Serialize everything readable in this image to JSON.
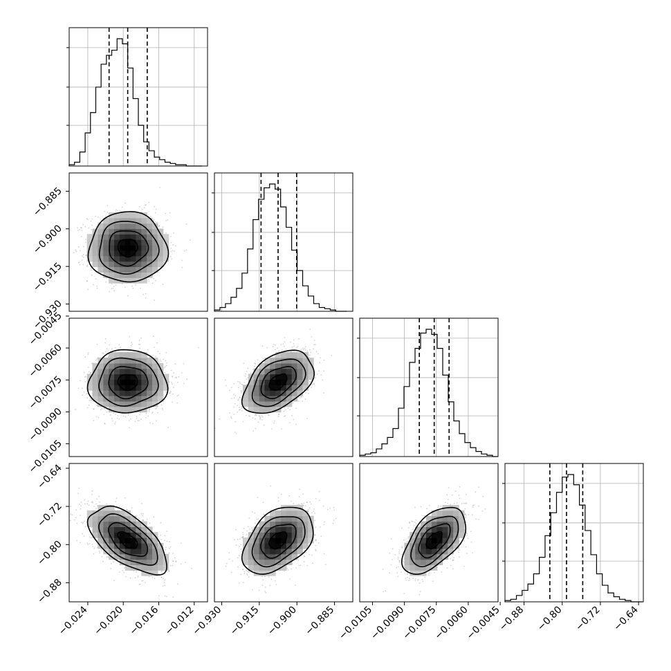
{
  "chart_data": {
    "type": "corner",
    "parameters": [
      {
        "ticks": [
          -0.024,
          -0.02,
          -0.016,
          -0.012
        ],
        "tick_labels": [
          "−0.024",
          "−0.020",
          "−0.016",
          "−0.012"
        ],
        "range": [
          -0.0261,
          -0.0105
        ],
        "quantiles": [
          -0.0216,
          -0.0195,
          -0.0173
        ],
        "histogram": {
          "edges": [
            -0.0261,
            -0.0255,
            -0.0249,
            -0.0243,
            -0.0237,
            -0.0231,
            -0.0225,
            -0.0219,
            -0.0213,
            -0.0207,
            -0.0201,
            -0.0195,
            -0.0189,
            -0.0183,
            -0.0177,
            -0.0171,
            -0.0165,
            -0.0159,
            -0.0153,
            -0.0147,
            -0.0141,
            -0.0135,
            -0.0129,
            -0.0123,
            -0.0117,
            -0.0111
          ],
          "counts": [
            0.01,
            0.03,
            0.11,
            0.26,
            0.42,
            0.62,
            0.8,
            0.87,
            0.91,
            1.0,
            0.96,
            0.77,
            0.53,
            0.32,
            0.19,
            0.12,
            0.07,
            0.05,
            0.03,
            0.02,
            0.01,
            0.01,
            0.0,
            0.0,
            0.0
          ]
        }
      },
      {
        "ticks": [
          -0.93,
          -0.915,
          -0.9,
          -0.885
        ],
        "tick_labels": [
          "−0.930",
          "−0.915",
          "−0.900",
          "−0.885"
        ],
        "range": [
          -0.9329,
          -0.8777
        ],
        "quantiles": [
          -0.9143,
          -0.9075,
          -0.9001
        ],
        "histogram": {
          "edges": [
            -0.9329,
            -0.9307,
            -0.9285,
            -0.9263,
            -0.9241,
            -0.9219,
            -0.9197,
            -0.9175,
            -0.9153,
            -0.9131,
            -0.9109,
            -0.9087,
            -0.9065,
            -0.9043,
            -0.9021,
            -0.8999,
            -0.8977,
            -0.8955,
            -0.8933,
            -0.8911,
            -0.8889,
            -0.8867,
            -0.8845,
            -0.8823,
            -0.8801
          ],
          "counts": [
            0.01,
            0.03,
            0.06,
            0.11,
            0.18,
            0.3,
            0.49,
            0.72,
            0.88,
            0.97,
            1.0,
            0.96,
            0.82,
            0.66,
            0.48,
            0.32,
            0.2,
            0.12,
            0.06,
            0.03,
            0.02,
            0.01,
            0.0,
            0.0
          ]
        }
      },
      {
        "ticks": [
          -0.0105,
          -0.009,
          -0.0075,
          -0.006,
          -0.0045
        ],
        "tick_labels": [
          "−0.0105",
          "−0.0090",
          "−0.0075",
          "−0.0060",
          "−0.0045"
        ],
        "range": [
          -0.0111,
          -0.0046
        ],
        "quantiles": [
          -0.0083,
          -0.0076,
          -0.0069
        ],
        "histogram": {
          "edges": [
            -0.0111,
            -0.01084,
            -0.01058,
            -0.01032,
            -0.01006,
            -0.0098,
            -0.00954,
            -0.00928,
            -0.00902,
            -0.00876,
            -0.0085,
            -0.00824,
            -0.00798,
            -0.00772,
            -0.00746,
            -0.0072,
            -0.00694,
            -0.00668,
            -0.00642,
            -0.00616,
            -0.0059,
            -0.00564,
            -0.00538,
            -0.00512,
            -0.00486,
            -0.0046
          ],
          "counts": [
            0.01,
            0.02,
            0.03,
            0.06,
            0.1,
            0.15,
            0.22,
            0.38,
            0.55,
            0.74,
            0.85,
            0.97,
            1.0,
            0.96,
            0.85,
            0.64,
            0.43,
            0.28,
            0.18,
            0.11,
            0.07,
            0.04,
            0.02,
            0.01,
            0.0
          ]
        }
      },
      {
        "ticks": [
          -0.88,
          -0.8,
          -0.72,
          -0.64
        ],
        "tick_labels": [
          "−0.88",
          "−0.80",
          "−0.72",
          "−0.64"
        ],
        "range": [
          -0.92,
          -0.63
        ],
        "quantiles": [
          -0.826,
          -0.791,
          -0.757
        ],
        "histogram": {
          "edges": [
            -0.92,
            -0.908,
            -0.896,
            -0.884,
            -0.872,
            -0.86,
            -0.848,
            -0.836,
            -0.824,
            -0.812,
            -0.8,
            -0.788,
            -0.776,
            -0.764,
            -0.752,
            -0.74,
            -0.728,
            -0.716,
            -0.704,
            -0.692,
            -0.68,
            -0.668,
            -0.656,
            -0.644,
            -0.632
          ],
          "counts": [
            0.01,
            0.02,
            0.05,
            0.09,
            0.14,
            0.22,
            0.35,
            0.52,
            0.7,
            0.86,
            0.98,
            1.0,
            0.92,
            0.76,
            0.56,
            0.37,
            0.22,
            0.13,
            0.07,
            0.04,
            0.02,
            0.01,
            0.0,
            0.0
          ]
        }
      }
    ],
    "pairs": [
      {
        "x": 0,
        "y": 1,
        "mean": [
          -0.0195,
          -0.9075
        ],
        "sigma": [
          0.0022,
          0.007
        ],
        "rho": 0.0,
        "scatter_points": 1300
      },
      {
        "x": 0,
        "y": 2,
        "mean": [
          -0.0195,
          -0.0076
        ],
        "sigma": [
          0.0022,
          0.00074
        ],
        "rho": 0.0,
        "scatter_points": 1300
      },
      {
        "x": 1,
        "y": 2,
        "mean": [
          -0.9075,
          -0.0076
        ],
        "sigma": [
          0.007,
          0.00074
        ],
        "rho": 0.45,
        "scatter_points": 1300
      },
      {
        "x": 0,
        "y": 3,
        "mean": [
          -0.0195,
          -0.791
        ],
        "sigma": [
          0.0022,
          0.035
        ],
        "rho": -0.6,
        "scatter_points": 1300
      },
      {
        "x": 1,
        "y": 3,
        "mean": [
          -0.9075,
          -0.791
        ],
        "sigma": [
          0.007,
          0.035
        ],
        "rho": 0.42,
        "scatter_points": 1300
      },
      {
        "x": 2,
        "y": 3,
        "mean": [
          -0.0076,
          -0.791
        ],
        "sigma": [
          0.00074,
          0.035
        ],
        "rho": 0.55,
        "scatter_points": 1300
      }
    ],
    "contour_levels_sigma": [
      0.5,
      1.0,
      1.5,
      2.0
    ],
    "grid": true,
    "colors": {
      "line": "#000000",
      "grid": "#b0b0b0",
      "scatter": "#7f7f7f",
      "density_dark": "#000000",
      "density_light": "#ffffff"
    }
  }
}
